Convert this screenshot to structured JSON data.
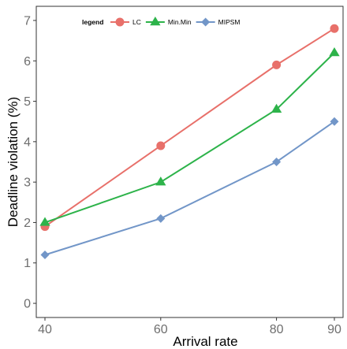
{
  "chart_data": {
    "type": "line",
    "title": "",
    "xlabel": "Arrival rate",
    "ylabel": "Deadline violation (%)",
    "x": [
      40,
      60,
      80,
      90
    ],
    "xlim": [
      38.5,
      91.5
    ],
    "ylim": [
      -0.35,
      7.35
    ],
    "xticks": [
      40,
      60,
      80,
      90
    ],
    "yticks": [
      0,
      1,
      2,
      3,
      4,
      5,
      6,
      7
    ],
    "grid": false,
    "legend": {
      "title": "legend",
      "placement": "top-left",
      "orientation": "horizontal"
    },
    "series": [
      {
        "name": "LC",
        "values": [
          1.9,
          3.9,
          5.9,
          6.8
        ],
        "color": "#e8706a",
        "marker": "circle"
      },
      {
        "name": "Min.Min",
        "values": [
          2.0,
          3.0,
          4.8,
          6.2
        ],
        "color": "#2db34a",
        "marker": "triangle"
      },
      {
        "name": "MIPSM",
        "values": [
          1.2,
          2.1,
          3.5,
          4.5
        ],
        "color": "#7296c8",
        "marker": "diamond"
      }
    ]
  }
}
